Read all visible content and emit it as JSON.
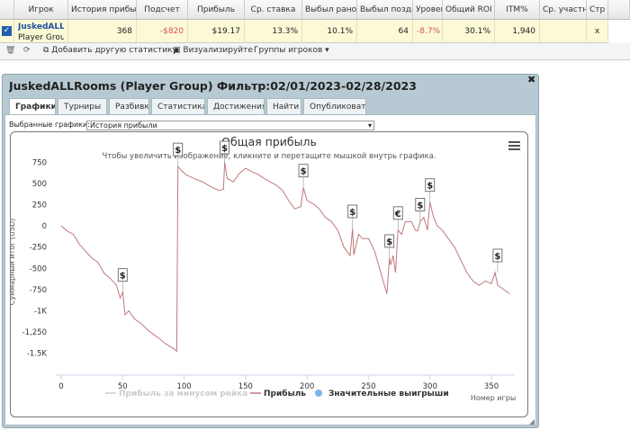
{
  "table": {
    "headers": [
      "Игрок",
      "История прибыли",
      "Подсчет",
      "Прибыль",
      "Ср. ставка",
      "Выбыл рано",
      "Выбыл поздно",
      "Уровень",
      "Общий ROI",
      "ITM%",
      "Ср. участников",
      "Стр"
    ],
    "rows": [
      [
        "JuskedALLRooms",
        "368",
        "-$820",
        "$19.17",
        "13.3%",
        "10.1%",
        "64",
        "-8.7%",
        "30.1%",
        "1,940",
        "",
        "x"
      ]
    ],
    "row_subtitle": "Player Group"
  },
  "toolbar": {
    "items": [
      "Добавить другую статистику",
      "Визуализируйте",
      "Группы игроков"
    ]
  },
  "dialog": {
    "title": "JuskedALLRooms (Player Group) Фильтр:02/01/2023-02/28/2023",
    "tabs": [
      "Графики",
      "Турниры",
      "Разбивка",
      "Статистика",
      "Достижения",
      "Найти",
      "Опубликовать"
    ],
    "selector_label": "Выбранные графики:",
    "selector_value": "История прибыли"
  },
  "chart_data": {
    "type": "line",
    "title": "Общая прибыль",
    "subtitle": "Чтобы увеличить изображение, кликните и перетащите мышкой внутрь графика.",
    "y_label": "Суммарный итог (USD)",
    "x_label": "Номер игры",
    "x": [
      0,
      5,
      10,
      15,
      20,
      25,
      30,
      35,
      40,
      45,
      48,
      50,
      52,
      55,
      60,
      65,
      70,
      75,
      80,
      85,
      92,
      94,
      95,
      98,
      102,
      108,
      115,
      122,
      128,
      132,
      133,
      135,
      140,
      145,
      150,
      155,
      160,
      165,
      170,
      175,
      180,
      185,
      190,
      195,
      197,
      200,
      205,
      210,
      215,
      220,
      225,
      230,
      235,
      237,
      238,
      242,
      245,
      250,
      255,
      260,
      265,
      267,
      268,
      270,
      272,
      274,
      277,
      280,
      285,
      288,
      290,
      292,
      295,
      298,
      300,
      303,
      306,
      310,
      315,
      320,
      325,
      330,
      335,
      340,
      345,
      350,
      353,
      355,
      360,
      365
    ],
    "series": [
      {
        "name": "Прибыль за минусом рейка",
        "color": "#cccccc",
        "visible": false
      },
      {
        "name": "Прибыль",
        "color": "#c0787c",
        "values": [
          0,
          -60,
          -100,
          -220,
          -300,
          -380,
          -430,
          -560,
          -620,
          -700,
          -850,
          -780,
          -1050,
          -1000,
          -1100,
          -1150,
          -1220,
          -1280,
          -1330,
          -1390,
          -1450,
          -1480,
          700,
          650,
          600,
          560,
          520,
          460,
          420,
          430,
          750,
          560,
          520,
          620,
          680,
          640,
          610,
          560,
          520,
          480,
          420,
          300,
          200,
          230,
          450,
          300,
          260,
          200,
          100,
          50,
          -50,
          -250,
          -350,
          -30,
          -340,
          -100,
          -150,
          -150,
          -300,
          -550,
          -800,
          -380,
          -460,
          -350,
          -550,
          -50,
          -100,
          50,
          50,
          -50,
          -60,
          50,
          100,
          -50,
          280,
          100,
          0,
          -50,
          -150,
          -250,
          -400,
          -550,
          -650,
          -700,
          -650,
          -680,
          -550,
          -700,
          -750,
          -800
        ]
      },
      {
        "name": "Значительные выигрыши",
        "color": "#7cb5ec",
        "x": [
          50,
          95,
          133,
          197,
          237,
          267,
          274,
          292,
          300,
          355
        ],
        "values": [
          -780,
          700,
          750,
          450,
          -30,
          -380,
          -50,
          50,
          280,
          -550
        ],
        "flag_labels": [
          "$",
          "$",
          "$",
          "$",
          "$",
          "$",
          "€",
          "$",
          "$",
          "$"
        ]
      }
    ],
    "xlim": [
      -4,
      369
    ],
    "ylim": [
      -1600,
      850
    ],
    "xticks": [
      0,
      50,
      100,
      150,
      200,
      250,
      300,
      350
    ],
    "yticks": [
      750,
      500,
      250,
      0,
      -250,
      -500,
      -750,
      {
        "value": -1000,
        "label": "-1K"
      },
      {
        "value": -1250,
        "label": "-1,250"
      },
      {
        "value": -1500,
        "label": "-1.5K"
      }
    ],
    "grid": false
  }
}
